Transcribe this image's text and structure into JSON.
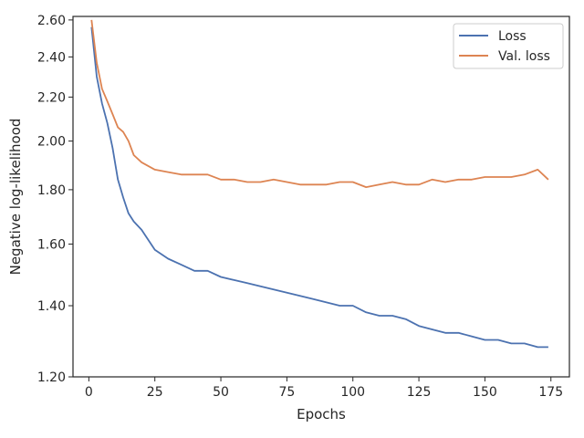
{
  "chart_data": {
    "type": "line",
    "xlabel": "Epochs",
    "ylabel": "Negative log-likelihood",
    "xlim": [
      -6,
      182
    ],
    "ylim": [
      1.2,
      2.62
    ],
    "y_scale": "log",
    "x_ticks": [
      0,
      25,
      50,
      75,
      100,
      125,
      150,
      175
    ],
    "y_ticks": [
      1.2,
      1.4,
      1.6,
      1.8,
      2.0,
      2.2,
      2.4,
      2.6
    ],
    "y_tick_labels": [
      "1.20",
      "1.40",
      "1.60",
      "1.80",
      "2.00",
      "2.20",
      "2.40",
      "2.60"
    ],
    "grid": false,
    "legend_position": "top-right",
    "x": [
      1,
      3,
      5,
      7,
      9,
      11,
      13,
      15,
      17,
      20,
      25,
      30,
      35,
      40,
      45,
      50,
      55,
      60,
      65,
      70,
      75,
      80,
      85,
      90,
      95,
      100,
      105,
      110,
      115,
      120,
      125,
      130,
      135,
      140,
      145,
      150,
      155,
      160,
      165,
      170,
      174
    ],
    "series": [
      {
        "name": "Loss",
        "color": "#4c72b0",
        "values": [
          2.56,
          2.3,
          2.17,
          2.08,
          1.97,
          1.84,
          1.77,
          1.71,
          1.68,
          1.65,
          1.58,
          1.55,
          1.53,
          1.51,
          1.51,
          1.49,
          1.48,
          1.47,
          1.46,
          1.45,
          1.44,
          1.43,
          1.42,
          1.41,
          1.4,
          1.4,
          1.38,
          1.37,
          1.37,
          1.36,
          1.34,
          1.33,
          1.32,
          1.32,
          1.31,
          1.3,
          1.3,
          1.29,
          1.29,
          1.28,
          1.28
        ]
      },
      {
        "name": "Val. loss",
        "color": "#dd8452",
        "values": [
          2.6,
          2.37,
          2.24,
          2.18,
          2.12,
          2.06,
          2.04,
          2.0,
          1.94,
          1.91,
          1.88,
          1.87,
          1.86,
          1.86,
          1.86,
          1.84,
          1.84,
          1.83,
          1.83,
          1.84,
          1.83,
          1.82,
          1.82,
          1.82,
          1.83,
          1.83,
          1.81,
          1.82,
          1.83,
          1.82,
          1.82,
          1.84,
          1.83,
          1.84,
          1.84,
          1.85,
          1.85,
          1.85,
          1.86,
          1.88,
          1.84
        ]
      }
    ]
  }
}
